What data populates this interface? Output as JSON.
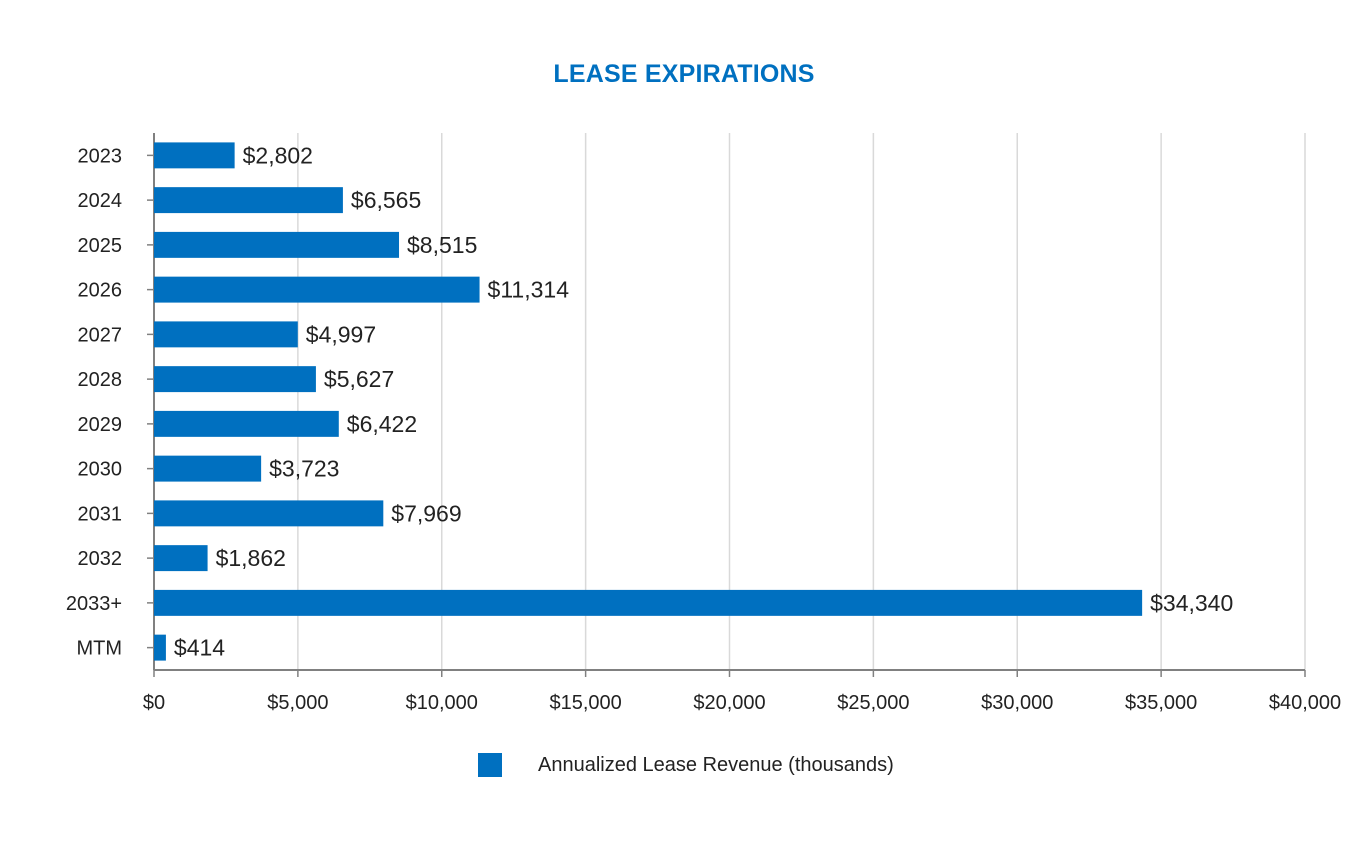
{
  "chart_data": {
    "type": "bar",
    "orientation": "horizontal",
    "title": "LEASE EXPIRATIONS",
    "categories": [
      "2023",
      "2024",
      "2025",
      "2026",
      "2027",
      "2028",
      "2029",
      "2030",
      "2031",
      "2032",
      "2033+",
      "MTM"
    ],
    "series": [
      {
        "name": "Annualized Lease Revenue (thousands)",
        "values": [
          2802,
          6565,
          8515,
          11314,
          4997,
          5627,
          6422,
          3723,
          7969,
          1862,
          34340,
          414
        ],
        "value_labels": [
          "$2,802",
          "$6,565",
          "$8,515",
          "$11,314",
          "$4,997",
          "$5,627",
          "$6,422",
          "$3,723",
          "$7,969",
          "$1,862",
          "$34,340",
          "$414"
        ]
      }
    ],
    "xlim": [
      0,
      40000
    ],
    "x_ticks": [
      0,
      5000,
      10000,
      15000,
      20000,
      25000,
      30000,
      35000,
      40000
    ],
    "x_tick_labels": [
      "$0",
      "$5,000",
      "$10,000",
      "$15,000",
      "$20,000",
      "$25,000",
      "$30,000",
      "$35,000",
      "$40,000"
    ],
    "grid": "vertical",
    "legend_position": "bottom",
    "colors": {
      "bar": "#0070c0",
      "title": "#0070c0",
      "grid": "#d9d9d9",
      "axis": "#808080",
      "text": "#222222"
    }
  }
}
